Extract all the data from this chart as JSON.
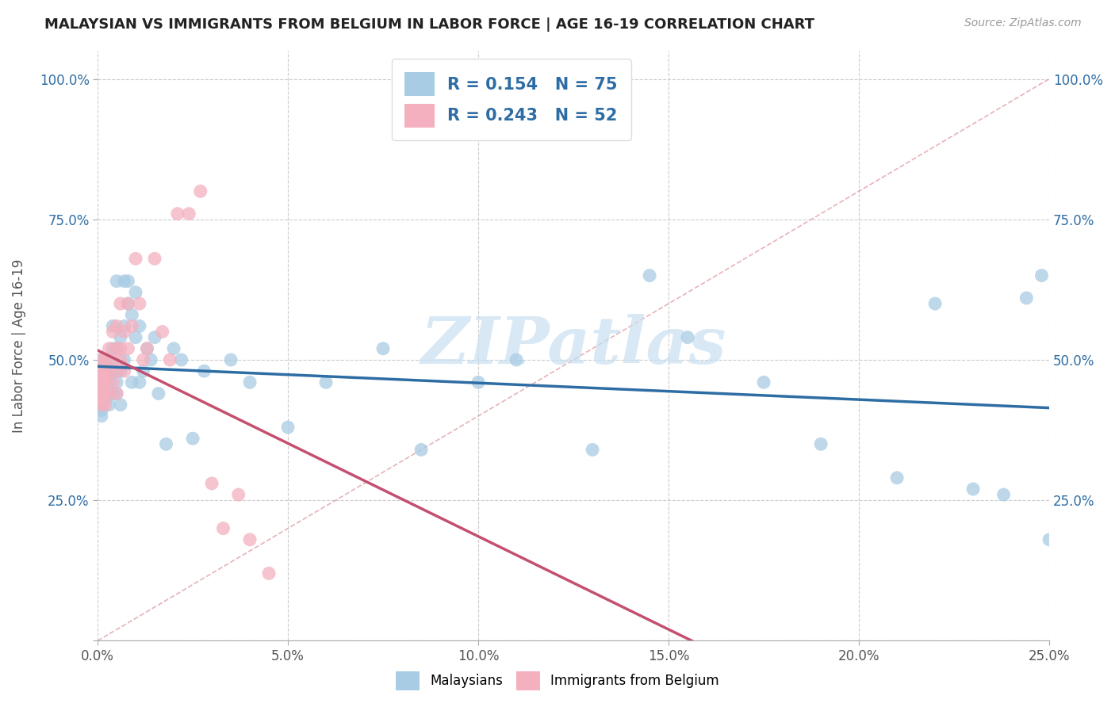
{
  "title": "MALAYSIAN VS IMMIGRANTS FROM BELGIUM IN LABOR FORCE | AGE 16-19 CORRELATION CHART",
  "source": "Source: ZipAtlas.com",
  "ylabel": "In Labor Force | Age 16-19",
  "legend_label_1": "Malaysians",
  "legend_label_2": "Immigrants from Belgium",
  "R1": "0.154",
  "N1": "75",
  "R2": "0.243",
  "N2": "52",
  "color1": "#a8cce4",
  "color2": "#f4b0be",
  "line_color1": "#2e6da4",
  "line_color2": "#c45070",
  "watermark_text": "ZIPatlas",
  "watermark_color": "#c8dff0",
  "xmin": 0.0,
  "xmax": 0.25,
  "ymin": 0.0,
  "ymax": 1.05,
  "xticks": [
    0.0,
    0.05,
    0.1,
    0.15,
    0.2,
    0.25
  ],
  "yticks": [
    0.0,
    0.25,
    0.5,
    0.75,
    1.0
  ],
  "xtick_labels": [
    "0.0%",
    "5.0%",
    "10.0%",
    "15.0%",
    "20.0%",
    "25.0%"
  ],
  "ytick_labels": [
    "",
    "25.0%",
    "50.0%",
    "75.0%",
    "100.0%"
  ],
  "malaysians_x": [
    0.001,
    0.001,
    0.001,
    0.001,
    0.001,
    0.001,
    0.001,
    0.001,
    0.001,
    0.001,
    0.002,
    0.002,
    0.002,
    0.002,
    0.002,
    0.002,
    0.003,
    0.003,
    0.003,
    0.003,
    0.003,
    0.003,
    0.004,
    0.004,
    0.004,
    0.004,
    0.005,
    0.005,
    0.005,
    0.005,
    0.005,
    0.006,
    0.006,
    0.006,
    0.007,
    0.007,
    0.007,
    0.008,
    0.008,
    0.009,
    0.009,
    0.01,
    0.01,
    0.011,
    0.011,
    0.012,
    0.013,
    0.014,
    0.015,
    0.016,
    0.018,
    0.02,
    0.022,
    0.025,
    0.028,
    0.035,
    0.04,
    0.05,
    0.06,
    0.075,
    0.085,
    0.1,
    0.11,
    0.13,
    0.145,
    0.155,
    0.175,
    0.19,
    0.21,
    0.22,
    0.23,
    0.238,
    0.244,
    0.248,
    0.25
  ],
  "malaysians_y": [
    0.44,
    0.46,
    0.43,
    0.47,
    0.45,
    0.41,
    0.42,
    0.48,
    0.5,
    0.4,
    0.45,
    0.44,
    0.47,
    0.43,
    0.46,
    0.5,
    0.44,
    0.47,
    0.5,
    0.48,
    0.42,
    0.46,
    0.48,
    0.52,
    0.44,
    0.56,
    0.46,
    0.52,
    0.48,
    0.44,
    0.64,
    0.48,
    0.54,
    0.42,
    0.56,
    0.64,
    0.5,
    0.64,
    0.6,
    0.58,
    0.46,
    0.54,
    0.62,
    0.56,
    0.46,
    0.48,
    0.52,
    0.5,
    0.54,
    0.44,
    0.35,
    0.52,
    0.5,
    0.36,
    0.48,
    0.5,
    0.46,
    0.38,
    0.46,
    0.52,
    0.34,
    0.46,
    0.5,
    0.34,
    0.65,
    0.54,
    0.46,
    0.35,
    0.29,
    0.6,
    0.27,
    0.26,
    0.61,
    0.65,
    0.18
  ],
  "belgium_x": [
    0.001,
    0.001,
    0.001,
    0.001,
    0.001,
    0.001,
    0.001,
    0.001,
    0.001,
    0.001,
    0.001,
    0.001,
    0.001,
    0.002,
    0.002,
    0.002,
    0.002,
    0.002,
    0.002,
    0.003,
    0.003,
    0.003,
    0.004,
    0.004,
    0.004,
    0.005,
    0.005,
    0.005,
    0.005,
    0.006,
    0.006,
    0.006,
    0.007,
    0.007,
    0.008,
    0.008,
    0.009,
    0.01,
    0.011,
    0.012,
    0.013,
    0.015,
    0.017,
    0.019,
    0.021,
    0.024,
    0.027,
    0.03,
    0.033,
    0.037,
    0.04,
    0.045
  ],
  "belgium_y": [
    0.44,
    0.43,
    0.42,
    0.45,
    0.47,
    0.46,
    0.44,
    0.43,
    0.45,
    0.5,
    0.48,
    0.46,
    0.43,
    0.47,
    0.5,
    0.48,
    0.44,
    0.46,
    0.42,
    0.52,
    0.48,
    0.44,
    0.5,
    0.55,
    0.46,
    0.56,
    0.52,
    0.48,
    0.44,
    0.6,
    0.52,
    0.5,
    0.55,
    0.48,
    0.6,
    0.52,
    0.56,
    0.68,
    0.6,
    0.5,
    0.52,
    0.68,
    0.55,
    0.5,
    0.76,
    0.76,
    0.8,
    0.28,
    0.2,
    0.26,
    0.18,
    0.12
  ],
  "ref_line_x": [
    0.0,
    0.25
  ],
  "ref_line_y": [
    0.0,
    1.0
  ]
}
